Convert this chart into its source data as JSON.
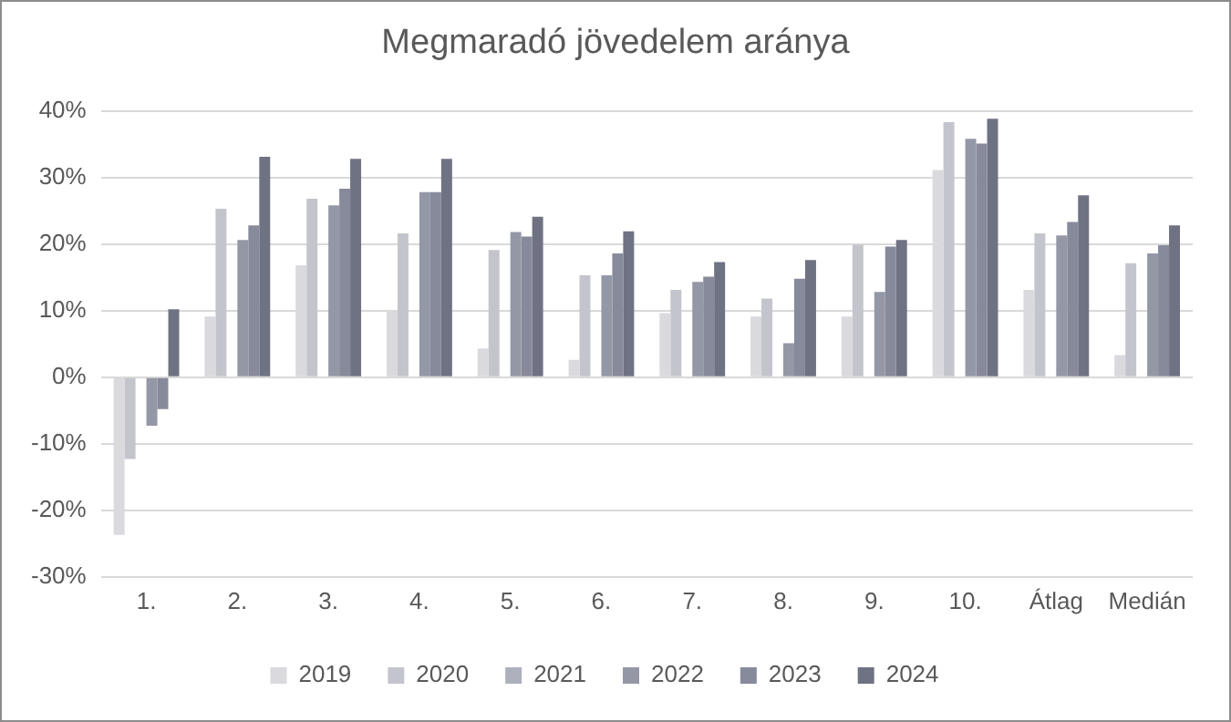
{
  "chart_data": {
    "type": "bar",
    "title": "Megmaradó jövedelem aránya",
    "categories": [
      "1.",
      "2.",
      "3.",
      "4.",
      "5.",
      "6.",
      "7.",
      "8.",
      "9.",
      "10.",
      "Átlag",
      "Medián"
    ],
    "series": [
      {
        "name": "2019",
        "color": "#d9d9de",
        "values": [
          -23.7,
          9.1,
          16.8,
          10.1,
          4.3,
          2.6,
          9.6,
          9.1,
          9.1,
          31.1,
          13.1,
          3.3
        ]
      },
      {
        "name": "2020",
        "color": "#c4c5cc",
        "values": [
          -12.3,
          25.3,
          26.8,
          21.6,
          19.1,
          15.3,
          13.1,
          11.8,
          19.9,
          38.3,
          21.6,
          17.1
        ]
      },
      {
        "name": "2021",
        "color": "#aeb0bd",
        "values": [
          null,
          null,
          null,
          null,
          null,
          null,
          null,
          null,
          null,
          null,
          null,
          null
        ]
      },
      {
        "name": "2022",
        "color": "#9497a6",
        "values": [
          -7.3,
          20.6,
          25.8,
          27.8,
          21.8,
          15.3,
          14.3,
          5.1,
          12.8,
          35.8,
          21.3,
          18.6
        ]
      },
      {
        "name": "2023",
        "color": "#878a9a",
        "values": [
          -4.8,
          22.8,
          28.3,
          27.8,
          21.1,
          18.6,
          15.1,
          14.8,
          19.6,
          35.1,
          23.3,
          19.8
        ]
      },
      {
        "name": "2024",
        "color": "#6f7282",
        "values": [
          10.2,
          33.1,
          32.8,
          32.8,
          24.1,
          21.9,
          17.3,
          17.6,
          20.6,
          38.8,
          27.3,
          22.8
        ]
      }
    ],
    "ylim": [
      -30,
      40
    ],
    "yticks": [
      {
        "value": -30,
        "label": "-30%"
      },
      {
        "value": -20,
        "label": "-20%"
      },
      {
        "value": -10,
        "label": "-10%"
      },
      {
        "value": 0,
        "label": "0%"
      },
      {
        "value": 10,
        "label": "10%"
      },
      {
        "value": 20,
        "label": "20%"
      },
      {
        "value": 30,
        "label": "30%"
      },
      {
        "value": 40,
        "label": "40%"
      }
    ],
    "grid": "y",
    "legend": "bottom"
  }
}
